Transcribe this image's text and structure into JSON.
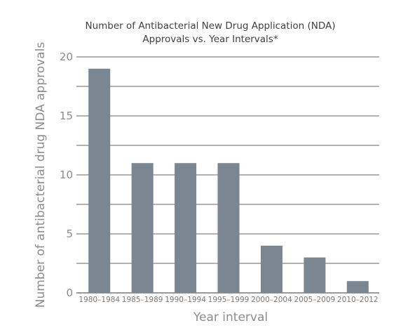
{
  "chart_data": {
    "type": "bar",
    "title": "Number of Antibacterial New Drug Application (NDA)",
    "subtitle": "Approvals vs. Year Intervals*",
    "xlabel": "Year interval",
    "ylabel": "Number of antibacterial drug NDA approvals",
    "categories": [
      "1980–1984",
      "1985–1989",
      "1990–1994",
      "1995–1999",
      "2000–2004",
      "2005–2009",
      "2010–2012"
    ],
    "values": [
      19,
      11,
      11,
      11,
      4,
      3,
      1
    ],
    "ylim": [
      0,
      20
    ],
    "yticks": [
      0,
      5,
      10,
      15,
      20
    ],
    "grid": true,
    "colors": {
      "bar": "#7a8690",
      "grid": "#9a9a9a",
      "background": "#ffffff"
    }
  }
}
